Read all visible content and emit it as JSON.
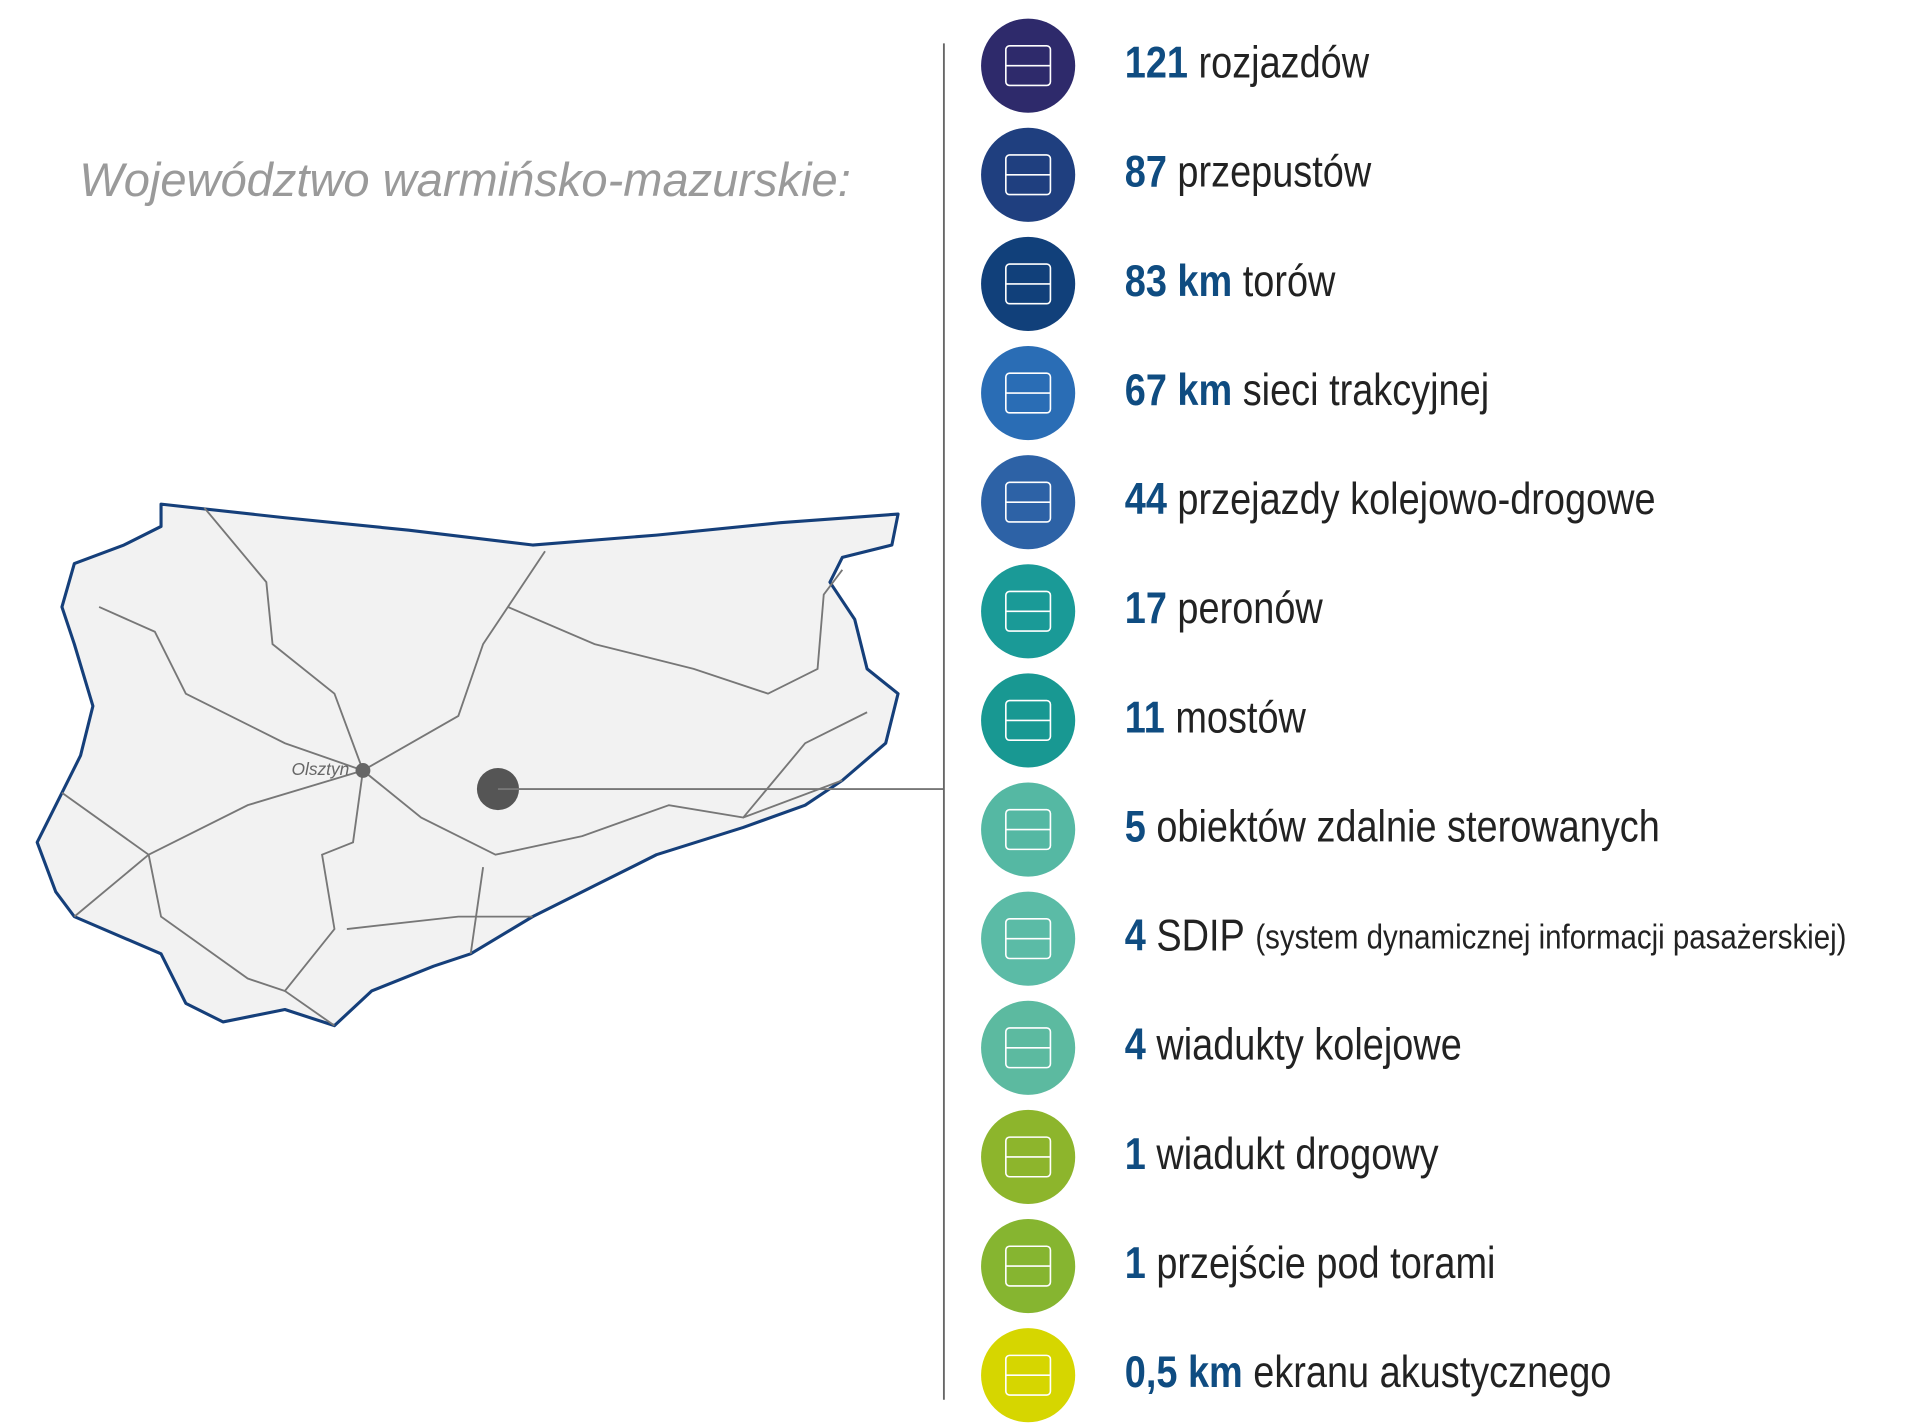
{
  "title": "Województwo warmińsko-mazurskie:",
  "map": {
    "city": "Olsztyn"
  },
  "items": [
    {
      "value": "121",
      "label": "rozjazdów",
      "color": "#2e2a6b"
    },
    {
      "value": "87",
      "label": "przepustów",
      "color": "#1f3f7f"
    },
    {
      "value": "83 km",
      "label": "torów",
      "color": "#11407a"
    },
    {
      "value": "67 km",
      "label": "sieci trakcyjnej",
      "color": "#2a6db5"
    },
    {
      "value": "44",
      "label": "przejazdy kolejowo-drogowe",
      "color": "#2d62a6"
    },
    {
      "value": "17",
      "label": "peronów",
      "color": "#1a9a97"
    },
    {
      "value": "11",
      "label": "mostów",
      "color": "#189892"
    },
    {
      "value": "5",
      "label": "obiektów zdalnie sterowanych",
      "color": "#55b8a3"
    },
    {
      "value": "4",
      "label": "SDIP",
      "note": "(system dynamicznej informacji pasażerskiej)",
      "color": "#5bbba6"
    },
    {
      "value": "4",
      "label": "wiadukty kolejowe",
      "color": "#5cbaa0"
    },
    {
      "value": "1",
      "label": "wiadukt drogowy",
      "color": "#8db52c"
    },
    {
      "value": "1",
      "label": "przejście pod torami",
      "color": "#86b530"
    },
    {
      "value": "0,5 km",
      "label": "ekranu akustycznego",
      "color": "#d6d600"
    }
  ]
}
